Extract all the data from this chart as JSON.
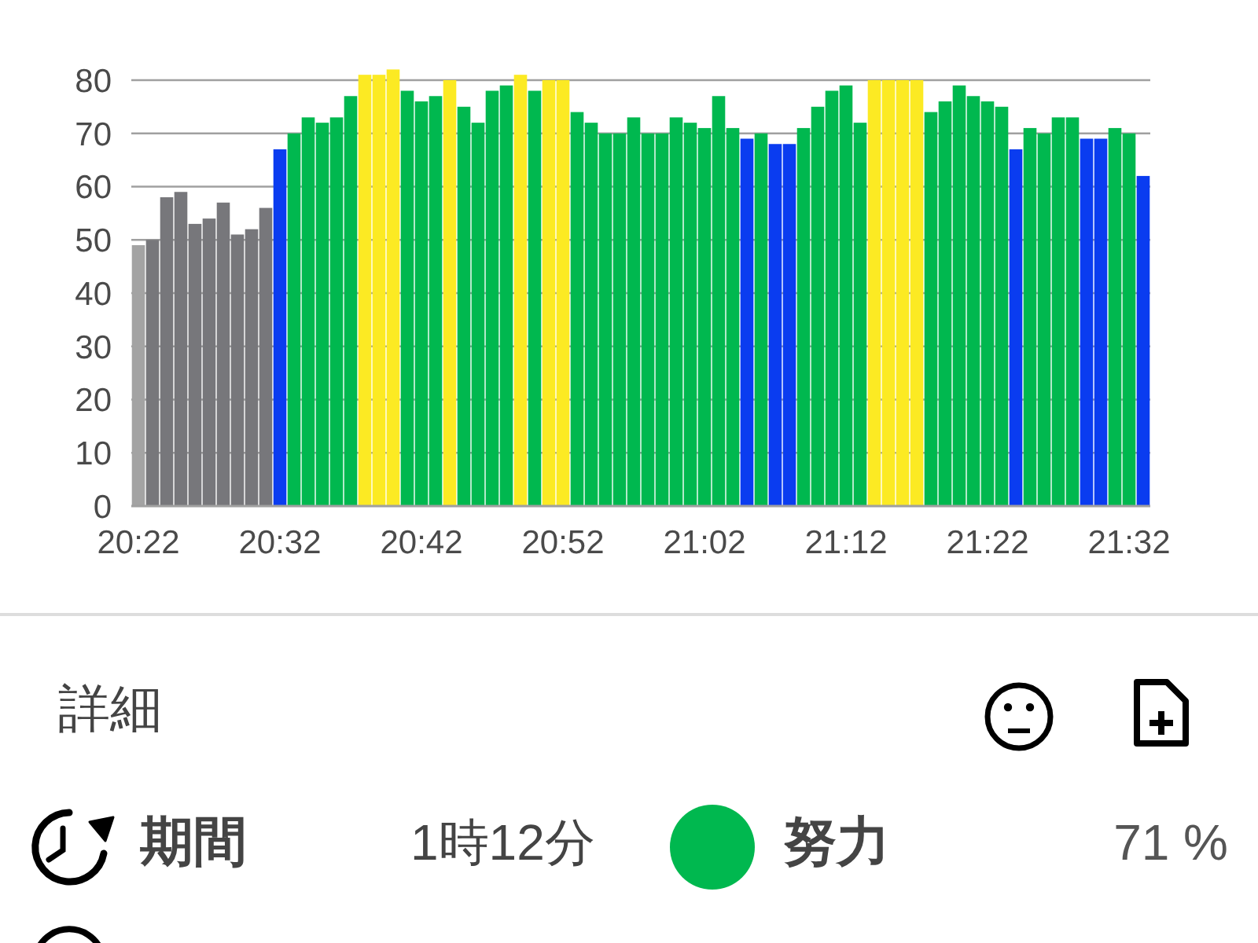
{
  "chart_data": {
    "type": "bar",
    "categories": [
      "20:22",
      null,
      null,
      null,
      null,
      null,
      null,
      null,
      null,
      null,
      "20:32",
      null,
      null,
      null,
      null,
      null,
      null,
      null,
      null,
      null,
      "20:42",
      null,
      null,
      null,
      null,
      null,
      null,
      null,
      null,
      null,
      "20:52",
      null,
      null,
      null,
      null,
      null,
      null,
      null,
      null,
      null,
      "21:02",
      null,
      null,
      null,
      null,
      null,
      null,
      null,
      null,
      null,
      "21:12",
      null,
      null,
      null,
      null,
      null,
      null,
      null,
      null,
      null,
      "21:22",
      null,
      null,
      null,
      null,
      null,
      null,
      null,
      null,
      null,
      "21:32",
      null
    ],
    "values": [
      49,
      50,
      58,
      59,
      53,
      54,
      57,
      51,
      52,
      56,
      67,
      70,
      73,
      72,
      73,
      77,
      81,
      81,
      82,
      78,
      76,
      77,
      80,
      75,
      72,
      78,
      79,
      81,
      78,
      80,
      80,
      74,
      72,
      70,
      70,
      73,
      70,
      70,
      73,
      72,
      71,
      77,
      71,
      69,
      70,
      68,
      68,
      71,
      75,
      78,
      79,
      72,
      80,
      80,
      80,
      80,
      74,
      76,
      79,
      77,
      76,
      75,
      67,
      71,
      70,
      73,
      73,
      69,
      69,
      71,
      70,
      62
    ],
    "colors": [
      "#a3a3a3",
      "#77777b",
      "#77777b",
      "#77777b",
      "#77777b",
      "#77777b",
      "#77777b",
      "#77777b",
      "#77777b",
      "#77777b",
      "#0a3cf0",
      "#00b84f",
      "#00b84f",
      "#00b84f",
      "#00b84f",
      "#00b84f",
      "#fcea23",
      "#fcea23",
      "#fcea23",
      "#00b84f",
      "#00b84f",
      "#00b84f",
      "#fcea23",
      "#00b84f",
      "#00b84f",
      "#00b84f",
      "#00b84f",
      "#fcea23",
      "#00b84f",
      "#fcea23",
      "#fcea23",
      "#00b84f",
      "#00b84f",
      "#00b84f",
      "#00b84f",
      "#00b84f",
      "#00b84f",
      "#00b84f",
      "#00b84f",
      "#00b84f",
      "#00b84f",
      "#00b84f",
      "#00b84f",
      "#0a3cf0",
      "#00b84f",
      "#0a3cf0",
      "#0a3cf0",
      "#00b84f",
      "#00b84f",
      "#00b84f",
      "#00b84f",
      "#00b84f",
      "#fcea23",
      "#fcea23",
      "#fcea23",
      "#fcea23",
      "#00b84f",
      "#00b84f",
      "#00b84f",
      "#00b84f",
      "#00b84f",
      "#00b84f",
      "#0a3cf0",
      "#00b84f",
      "#00b84f",
      "#00b84f",
      "#00b84f",
      "#0a3cf0",
      "#0a3cf0",
      "#00b84f",
      "#00b84f",
      "#0a3cf0"
    ],
    "ylim": [
      0,
      82
    ],
    "yticks": [
      0,
      10,
      20,
      30,
      40,
      50,
      60,
      70,
      80
    ],
    "grid": "y",
    "annotations": [
      "詳細",
      "期間",
      "1時12分",
      "努力",
      "71 %"
    ]
  }
}
